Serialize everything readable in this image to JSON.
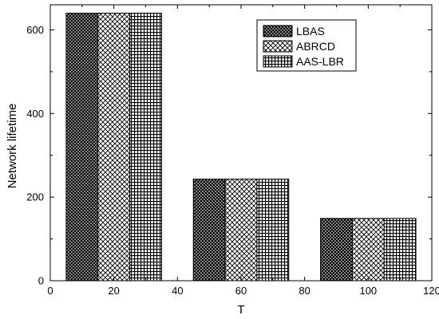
{
  "chart_data": {
    "type": "bar",
    "xlabel": "T",
    "ylabel": "Network lifetime",
    "xlim": [
      0,
      120
    ],
    "ylim": [
      0,
      660
    ],
    "xticks": [
      0,
      20,
      40,
      60,
      80,
      100,
      120
    ],
    "yticks": [
      0,
      200,
      400,
      600
    ],
    "legend_position": "top-right",
    "grid": false,
    "bar_width": 10,
    "series": [
      {
        "name": "LBAS",
        "pattern": "dense-crosshatch",
        "x": [
          10,
          50,
          90
        ],
        "values": [
          640,
          243,
          149
        ]
      },
      {
        "name": "ABRCD",
        "pattern": "diagonal-crosshatch",
        "x": [
          20,
          60,
          100
        ],
        "values": [
          640,
          243,
          149
        ]
      },
      {
        "name": "AAS-LBR",
        "pattern": "square-grid",
        "x": [
          30,
          70,
          110
        ],
        "values": [
          640,
          243,
          149
        ]
      }
    ]
  }
}
